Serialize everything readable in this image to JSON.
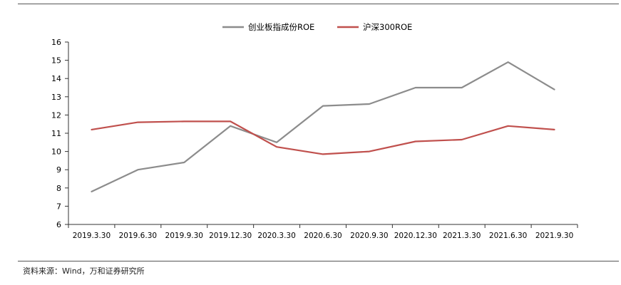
{
  "source_note": "资料来源：Wind，万和证券研究所",
  "chart_data": {
    "type": "line",
    "title": "",
    "xlabel": "",
    "ylabel": "",
    "categories": [
      "2019.3.30",
      "2019.6.30",
      "2019.9.30",
      "2019.12.30",
      "2020.3.30",
      "2020.6.30",
      "2020.9.30",
      "2020.12.30",
      "2021.3.30",
      "2021.6.30",
      "2021.9.30"
    ],
    "ylim": [
      6,
      16
    ],
    "yticks": [
      6,
      7,
      8,
      9,
      10,
      11,
      12,
      13,
      14,
      15,
      16
    ],
    "grid": false,
    "legend_position": "top-center",
    "series": [
      {
        "name": "创业板指成份ROE",
        "color": "#8c8c8c",
        "values": [
          7.8,
          9.0,
          9.4,
          11.4,
          10.5,
          12.5,
          12.6,
          13.5,
          13.5,
          14.9,
          13.4
        ]
      },
      {
        "name": "沪深300ROE",
        "color": "#c0504d",
        "values": [
          11.2,
          11.6,
          11.65,
          11.65,
          10.25,
          9.85,
          10.0,
          10.55,
          10.65,
          11.4,
          11.2
        ]
      }
    ]
  }
}
